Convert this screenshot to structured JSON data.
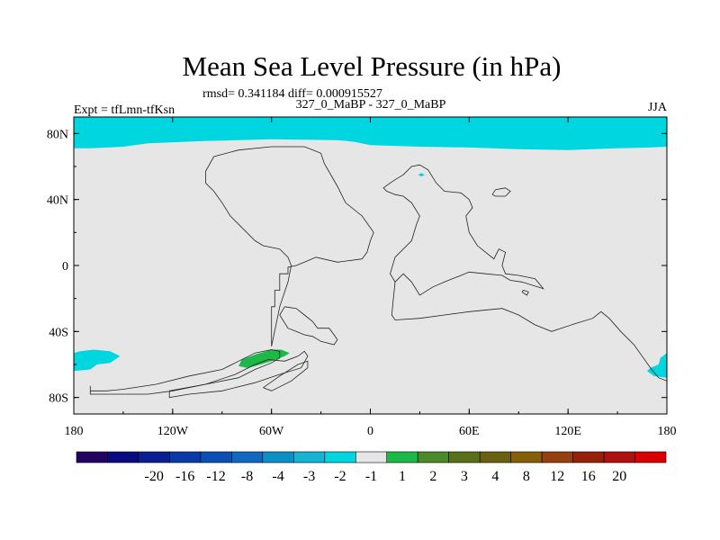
{
  "chart_data": {
    "type": "heatmap",
    "title": "Mean Sea Level Pressure (in hPa)",
    "stats_line": "rmsd= 0.341184 diff= 0.000915527",
    "left_label": "Expt = tfLmn-tfKsn",
    "center_label": "327_0_MaBP - 327_0_MaBP",
    "right_label": "JJA",
    "x_ticks": [
      {
        "value": -180,
        "label": "180"
      },
      {
        "value": -120,
        "label": "120W"
      },
      {
        "value": -60,
        "label": "60W"
      },
      {
        "value": 0,
        "label": "0"
      },
      {
        "value": 60,
        "label": "60E"
      },
      {
        "value": 120,
        "label": "120E"
      },
      {
        "value": 180,
        "label": "180"
      }
    ],
    "y_ticks": [
      {
        "value": 80,
        "label": "80N"
      },
      {
        "value": 40,
        "label": "40N"
      },
      {
        "value": 0,
        "label": "0"
      },
      {
        "value": -40,
        "label": "40S"
      },
      {
        "value": -80,
        "label": "80S"
      }
    ],
    "xlim": [
      -180,
      180
    ],
    "ylim": [
      -90,
      90
    ],
    "background_color": "#e6e6e6",
    "colorbar": {
      "colors": [
        "#230360",
        "#0a0a80",
        "#0a2090",
        "#0a3aa6",
        "#0a50b4",
        "#1068c0",
        "#0b8fc7",
        "#16b4d4",
        "#00d6e0",
        "#e6e6e6",
        "#1cb848",
        "#4a8a28",
        "#587018",
        "#6a6010",
        "#866008",
        "#964010",
        "#962008",
        "#b01010",
        "#d80000"
      ],
      "labels": [
        "-20",
        "-16",
        "-12",
        "-8",
        "-4",
        "-3",
        "-2",
        "-1",
        "1",
        "2",
        "3",
        "4",
        "8",
        "12",
        "16",
        "20"
      ]
    },
    "anomaly_regions": [
      {
        "name": "arctic-negative",
        "value_range": "-2 to -1",
        "color": "#00d6e0",
        "points": [
          [
            -180,
            90
          ],
          [
            180,
            90
          ],
          [
            180,
            72
          ],
          [
            170,
            71.5
          ],
          [
            150,
            71
          ],
          [
            120,
            70
          ],
          [
            90,
            70.5
          ],
          [
            60,
            71.5
          ],
          [
            30,
            72
          ],
          [
            0,
            73
          ],
          [
            -10,
            75
          ],
          [
            -20,
            76
          ],
          [
            -60,
            76.5
          ],
          [
            -100,
            75.5
          ],
          [
            -135,
            74
          ],
          [
            -150,
            72
          ],
          [
            -170,
            71
          ],
          [
            -180,
            71
          ]
        ]
      },
      {
        "name": "arctic-spot",
        "value_range": "-2 to -1",
        "color": "#00d6e0",
        "points": [
          [
            29,
            55
          ],
          [
            31,
            56
          ],
          [
            33,
            55
          ],
          [
            31,
            54
          ]
        ]
      },
      {
        "name": "southern-ocean-west",
        "value_range": "-2 to -1",
        "color": "#00d6e0",
        "points": [
          [
            -180,
            -53
          ],
          [
            -176,
            -52
          ],
          [
            -168,
            -51
          ],
          [
            -158,
            -52
          ],
          [
            -152,
            -55
          ],
          [
            -158,
            -59
          ],
          [
            -166,
            -60
          ],
          [
            -170,
            -63
          ],
          [
            -180,
            -64
          ]
        ]
      },
      {
        "name": "southern-ocean-east",
        "value_range": "-2 to -1",
        "color": "#00d6e0",
        "points": [
          [
            180,
            -53
          ],
          [
            176,
            -56
          ],
          [
            175,
            -60
          ],
          [
            170,
            -62
          ],
          [
            168,
            -64
          ],
          [
            172,
            -67
          ],
          [
            180,
            -68
          ]
        ]
      },
      {
        "name": "south-positive",
        "value_range": "1 to 2",
        "color": "#1cb848",
        "points": [
          [
            -78,
            -57
          ],
          [
            -70,
            -54
          ],
          [
            -60,
            -51
          ],
          [
            -54,
            -51
          ],
          [
            -49,
            -53
          ],
          [
            -52,
            -55
          ],
          [
            -60,
            -58
          ],
          [
            -70,
            -61
          ],
          [
            -75,
            -62
          ],
          [
            -80,
            -61
          ]
        ]
      }
    ],
    "coastlines": [
      [
        [
          -170,
          -73
        ],
        [
          -170,
          -76
        ],
        [
          -160,
          -76
        ],
        [
          -150,
          -75
        ],
        [
          -130,
          -72
        ],
        [
          -110,
          -67
        ],
        [
          -90,
          -63
        ],
        [
          -80,
          -58
        ],
        [
          -70,
          -53
        ],
        [
          -60,
          -51
        ],
        [
          -55,
          -52
        ],
        [
          -55,
          -56
        ],
        [
          -60,
          -59
        ],
        [
          -70,
          -63
        ],
        [
          -80,
          -68
        ],
        [
          -100,
          -72
        ],
        [
          -120,
          -76
        ],
        [
          -135,
          -78
        ],
        [
          -170,
          -78
        ],
        [
          -170,
          -73
        ]
      ],
      [
        [
          -122,
          -76
        ],
        [
          -100,
          -72
        ],
        [
          -82,
          -66
        ],
        [
          -70,
          -60
        ],
        [
          -62,
          -57
        ],
        [
          -52,
          -58
        ],
        [
          -44,
          -55
        ],
        [
          -40,
          -52
        ],
        [
          -38,
          -55
        ],
        [
          -42,
          -62
        ],
        [
          -55,
          -66
        ],
        [
          -70,
          -71
        ],
        [
          -90,
          -76
        ],
        [
          -110,
          -78
        ],
        [
          -122,
          -80
        ],
        [
          -122,
          -76
        ]
      ],
      [
        [
          -65,
          -74
        ],
        [
          -55,
          -67
        ],
        [
          -44,
          -60
        ],
        [
          -38,
          -58
        ],
        [
          -38,
          -62
        ],
        [
          -48,
          -70
        ],
        [
          -60,
          -76
        ],
        [
          -65,
          -74
        ]
      ],
      [
        [
          -60,
          -49
        ],
        [
          -60,
          -25
        ],
        [
          -58,
          -25
        ],
        [
          -58,
          -15
        ],
        [
          -55,
          -15
        ],
        [
          -55,
          -5
        ],
        [
          -50,
          -5
        ],
        [
          -50,
          -1
        ],
        [
          -45,
          0
        ],
        [
          -40,
          2
        ],
        [
          -33,
          5
        ],
        [
          -20,
          2
        ],
        [
          -5,
          4
        ],
        [
          -2,
          8
        ],
        [
          0,
          15
        ],
        [
          2,
          20
        ],
        [
          -5,
          30
        ],
        [
          -15,
          38
        ],
        [
          -20,
          48
        ],
        [
          -28,
          62
        ],
        [
          -30,
          68
        ],
        [
          -40,
          72
        ],
        [
          -60,
          72
        ],
        [
          -80,
          70
        ],
        [
          -95,
          66
        ],
        [
          -100,
          57
        ],
        [
          -100,
          50
        ],
        [
          -95,
          45
        ],
        [
          -90,
          38
        ],
        [
          -85,
          30
        ],
        [
          -80,
          25
        ],
        [
          -75,
          20
        ],
        [
          -70,
          15
        ],
        [
          -65,
          12
        ],
        [
          -55,
          10
        ],
        [
          -50,
          5
        ],
        [
          -48,
          0
        ],
        [
          -50,
          -10
        ],
        [
          -55,
          -25
        ],
        [
          -60,
          -49
        ]
      ],
      [
        [
          -52,
          -25
        ],
        [
          -45,
          -26
        ],
        [
          -40,
          -30
        ],
        [
          -35,
          -34
        ],
        [
          -32,
          -38
        ],
        [
          -25,
          -38
        ],
        [
          -22,
          -42
        ],
        [
          -20,
          -45
        ],
        [
          -22,
          -48
        ],
        [
          -30,
          -46
        ],
        [
          -35,
          -43
        ],
        [
          -40,
          -42
        ],
        [
          -45,
          -40
        ],
        [
          -50,
          -38
        ],
        [
          -55,
          -30
        ],
        [
          -52,
          -25
        ]
      ],
      [
        [
          20,
          55
        ],
        [
          25,
          60
        ],
        [
          30,
          61
        ],
        [
          35,
          58
        ],
        [
          40,
          50
        ],
        [
          45,
          45
        ],
        [
          55,
          44
        ],
        [
          60,
          40
        ],
        [
          62,
          35
        ],
        [
          58,
          30
        ],
        [
          60,
          20
        ],
        [
          65,
          12
        ],
        [
          70,
          8
        ],
        [
          75,
          4
        ],
        [
          78,
          10
        ],
        [
          82,
          8
        ],
        [
          80,
          0
        ],
        [
          82,
          -5
        ],
        [
          90,
          -6
        ],
        [
          100,
          -8
        ],
        [
          105,
          -14
        ],
        [
          92,
          -10
        ],
        [
          85,
          -9
        ],
        [
          80,
          -6
        ],
        [
          70,
          -5
        ],
        [
          60,
          -4
        ],
        [
          45,
          -10
        ],
        [
          38,
          -13
        ],
        [
          30,
          -18
        ],
        [
          25,
          -10
        ],
        [
          20,
          -5
        ],
        [
          15,
          -10
        ],
        [
          12,
          -5
        ],
        [
          15,
          5
        ],
        [
          25,
          15
        ],
        [
          28,
          25
        ],
        [
          30,
          30
        ],
        [
          25,
          38
        ],
        [
          20,
          42
        ],
        [
          15,
          43
        ],
        [
          10,
          45
        ],
        [
          8,
          47
        ],
        [
          12,
          50
        ],
        [
          15,
          52
        ],
        [
          20,
          55
        ]
      ],
      [
        [
          15,
          -10
        ],
        [
          14,
          -20
        ],
        [
          13,
          -30
        ],
        [
          15,
          -33
        ],
        [
          30,
          -32
        ],
        [
          45,
          -30
        ],
        [
          60,
          -28
        ],
        [
          80,
          -26
        ],
        [
          90,
          -30
        ],
        [
          100,
          -36
        ],
        [
          110,
          -40
        ],
        [
          125,
          -35
        ],
        [
          135,
          -32
        ],
        [
          140,
          -28
        ],
        [
          145,
          -32
        ],
        [
          152,
          -40
        ],
        [
          160,
          -48
        ],
        [
          165,
          -55
        ],
        [
          170,
          -62
        ],
        [
          175,
          -68
        ],
        [
          180,
          -70
        ]
      ],
      [
        [
          74,
          43
        ],
        [
          76,
          46
        ],
        [
          82,
          47
        ],
        [
          85,
          45
        ],
        [
          82,
          42
        ],
        [
          76,
          42
        ],
        [
          74,
          43
        ]
      ],
      [
        [
          92,
          -16
        ],
        [
          95,
          -18
        ],
        [
          96,
          -16
        ],
        [
          93,
          -15
        ],
        [
          92,
          -16
        ]
      ]
    ]
  }
}
